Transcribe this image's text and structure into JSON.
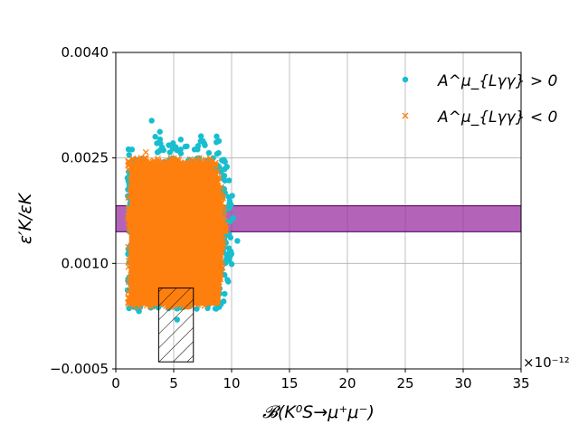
{
  "chart_data": {
    "type": "scatter",
    "title": "",
    "xlabel": "𝓑(K⁰S→μ⁺μ⁻)",
    "ylabel": "ε′K/εK",
    "x_scale_label": "×10⁻¹²",
    "xlim": [
      0,
      35
    ],
    "ylim": [
      -0.0005,
      0.004
    ],
    "x_ticks": [
      0,
      5,
      10,
      15,
      20,
      25,
      30,
      35
    ],
    "x_tick_labels": [
      "0",
      "5",
      "10",
      "15",
      "20",
      "25",
      "30",
      "35"
    ],
    "y_ticks": [
      -0.0005,
      0.001,
      0.0025,
      0.004
    ],
    "y_tick_labels": [
      "−0.0005",
      "0.0010",
      "0.0025",
      "0.0040"
    ],
    "grid": true,
    "legend_position": "top-right",
    "series": [
      {
        "name": "A^μ_{Lγγ} > 0",
        "marker": "circle",
        "color": "#17BECF",
        "region": {
          "x_range": [
            1.0,
            10.5
          ],
          "y_range": [
            0.00035,
            0.0029
          ]
        },
        "outliers": [
          [
            3.1,
            0.00303
          ],
          [
            4.0,
            0.00265
          ],
          [
            5.6,
            0.00262
          ],
          [
            6.8,
            0.00262
          ],
          [
            1.4,
            0.00262
          ],
          [
            5.3,
            0.0002
          ],
          [
            2.0,
            0.00032
          ],
          [
            9.0,
            0.00085
          ],
          [
            10.5,
            0.00132
          ],
          [
            9.8,
            0.00115
          ]
        ]
      },
      {
        "name": "A^μ_{Lγγ} < 0",
        "marker": "x",
        "color": "#FF7F0E",
        "region": {
          "x_range": [
            1.0,
            9.6
          ],
          "y_range": [
            0.00038,
            0.0025
          ]
        },
        "outliers": [
          [
            2.6,
            0.00258
          ],
          [
            1.5,
            0.00242
          ],
          [
            8.2,
            0.00225
          ],
          [
            9.2,
            0.00195
          ],
          [
            9.5,
            0.00155
          ],
          [
            8.7,
            0.00072
          ]
        ]
      }
    ],
    "bands": [
      {
        "type": "horizontal-band",
        "y_range": [
          0.00145,
          0.00182
        ],
        "fill": "#9B30A0",
        "edge": "#5A0A6E"
      }
    ],
    "boxes": [
      {
        "type": "hatched-box",
        "x_range": [
          3.7,
          6.7
        ],
        "y_range": [
          -0.0004,
          0.00065
        ]
      }
    ]
  }
}
